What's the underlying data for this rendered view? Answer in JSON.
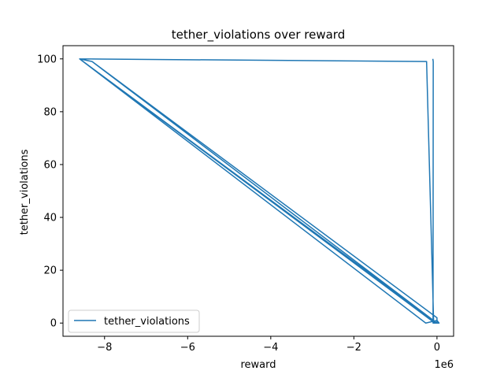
{
  "chart_data": {
    "type": "line",
    "title": "tether_violations over reward",
    "xlabel": "reward",
    "ylabel": "tether_violations",
    "x_offset_label": "1e6",
    "x_scale": 1000000,
    "xlim": [
      -9000000,
      400000
    ],
    "ylim": [
      -5,
      105
    ],
    "xticks": [
      -8000000,
      -6000000,
      -4000000,
      -2000000,
      0
    ],
    "xtick_labels": [
      "−8",
      "−6",
      "−4",
      "−2",
      "0"
    ],
    "yticks": [
      0,
      20,
      40,
      60,
      80,
      100
    ],
    "ytick_labels": [
      "0",
      "20",
      "40",
      "60",
      "80",
      "100"
    ],
    "grid": false,
    "legend": "lower-left",
    "line_color": "#1f77b4",
    "series": [
      {
        "name": "tether_violations",
        "x": [
          -100000,
          -90000,
          -95000,
          -50000,
          -8600000,
          -8300000,
          0,
          -8600000,
          -250000,
          -80000,
          50000,
          0,
          -270000,
          -8600000,
          -8300000,
          0,
          0
        ],
        "y": [
          100,
          99,
          0,
          0,
          100,
          99,
          0,
          100,
          99,
          0,
          0,
          1,
          0,
          100,
          99,
          2,
          0
        ]
      }
    ]
  }
}
